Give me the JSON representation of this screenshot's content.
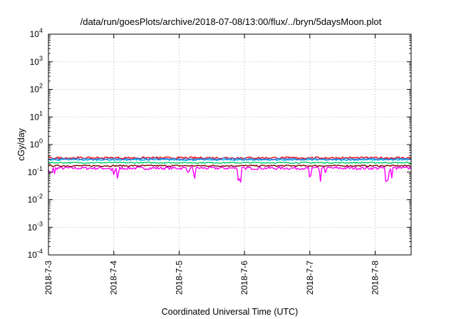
{
  "chart_data": {
    "type": "line",
    "title": "/data/run/goesPlots/archive/2018-07-08/13:00/flux/../bryn/5daysMoon.plot",
    "xlabel": "Coordinated Universal Time (UTC)",
    "ylabel": "cGy/day",
    "yscale": "log",
    "ylim": [
      0.0001,
      10000
    ],
    "yticks": [
      {
        "value": 0.0001,
        "base": "10",
        "exp": "-4"
      },
      {
        "value": 0.001,
        "base": "10",
        "exp": "-3"
      },
      {
        "value": 0.01,
        "base": "10",
        "exp": "-2"
      },
      {
        "value": 0.1,
        "base": "10",
        "exp": "-1"
      },
      {
        "value": 1,
        "base": "10",
        "exp": "0"
      },
      {
        "value": 10,
        "base": "10",
        "exp": "1"
      },
      {
        "value": 100,
        "base": "10",
        "exp": "2"
      },
      {
        "value": 1000,
        "base": "10",
        "exp": "3"
      },
      {
        "value": 10000,
        "base": "10",
        "exp": "4"
      }
    ],
    "xlim_days": [
      0,
      5.55
    ],
    "xticks": [
      {
        "value": 0,
        "label": "2018-7-3"
      },
      {
        "value": 1,
        "label": "2018-7-4"
      },
      {
        "value": 2,
        "label": "2018-7-5"
      },
      {
        "value": 3,
        "label": "2018-7-6"
      },
      {
        "value": 4,
        "label": "2018-7-7"
      },
      {
        "value": 5,
        "label": "2018-7-8"
      }
    ],
    "grid": true,
    "series": [
      {
        "color": "#ff00ff",
        "level": 0.14,
        "spread": 0.12,
        "dips": true
      },
      {
        "color": "#800000",
        "level": 0.17,
        "spread": 0.06,
        "dips": false
      },
      {
        "color": "#00cc66",
        "level": 0.22,
        "spread": 0.05,
        "dips": false
      },
      {
        "color": "#00bbee",
        "level": 0.28,
        "spread": 0.06,
        "dips": false
      },
      {
        "color": "#ff0000",
        "level": 0.33,
        "spread": 0.08,
        "dips": false
      },
      {
        "color": "#3a6fd8",
        "level": 0.3,
        "spread": 0.09,
        "dips": false
      }
    ]
  }
}
